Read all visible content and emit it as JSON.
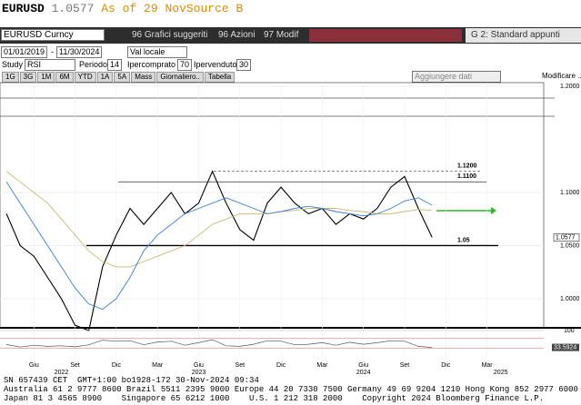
{
  "header": {
    "ticker": "EURUSD",
    "price": "1.0577",
    "asof": "As of 29 Nov",
    "source": "Source B"
  },
  "toolbar": {
    "security": "EURUSD Curncy",
    "buttons": [
      "96 Grafici suggeriti",
      "96 Azioni",
      "97 Modif"
    ],
    "right": "G 2: Standard appunti"
  },
  "controls": {
    "start": "01/01/2019",
    "separator": "-",
    "end": "11/30/2024",
    "currency": "Val locale",
    "study_label": "Study",
    "study": "RSI",
    "period_label": "Periodo",
    "period": "14",
    "overbought_label": "Ipercomprato",
    "overbought": "70",
    "oversold_label": "Ipervenduto",
    "oversold": "30"
  },
  "tabs": [
    "1G",
    "3G",
    "1M",
    "6M",
    "YTD",
    "1A",
    "5A",
    "Mass",
    "Giornaliero..",
    "Tabella"
  ],
  "add_data": "Aggiungere dati",
  "modify": "Modificare ...",
  "chart_data": [
    {
      "type": "line",
      "x": [
        "2022-04",
        "2022-05",
        "2022-06",
        "2022-07",
        "2022-08",
        "2022-09",
        "2022-10",
        "2022-11",
        "2022-12",
        "2023-01",
        "2023-02",
        "2023-03",
        "2023-04",
        "2023-05",
        "2023-06",
        "2023-07",
        "2023-08",
        "2023-09",
        "2023-10",
        "2023-11",
        "2023-12",
        "2024-01",
        "2024-02",
        "2024-03",
        "2024-04",
        "2024-05",
        "2024-06",
        "2024-07",
        "2024-08",
        "2024-09",
        "2024-10",
        "2024-11"
      ],
      "series": [
        {
          "color": "#000000",
          "values": [
            1.08,
            1.05,
            1.04,
            1.02,
            1.0,
            0.975,
            0.97,
            1.03,
            1.06,
            1.085,
            1.07,
            1.085,
            1.1,
            1.08,
            1.09,
            1.12,
            1.09,
            1.065,
            1.055,
            1.09,
            1.105,
            1.09,
            1.08,
            1.085,
            1.07,
            1.08,
            1.075,
            1.085,
            1.105,
            1.115,
            1.085,
            1.0577
          ]
        },
        {
          "color": "#c8b878",
          "values": [
            1.12,
            1.11,
            1.1,
            1.09,
            1.075,
            1.06,
            1.045,
            1.035,
            1.03,
            1.03,
            1.035,
            1.04,
            1.045,
            1.05,
            1.06,
            1.07,
            1.075,
            1.08,
            1.08,
            1.08,
            1.082,
            1.083,
            1.085,
            1.085,
            1.085,
            1.083,
            1.082,
            1.08,
            1.08,
            1.082,
            1.084,
            1.083
          ]
        },
        {
          "color": "#3f7fd0",
          "values": [
            1.11,
            1.09,
            1.07,
            1.05,
            1.03,
            1.01,
            0.995,
            0.99,
            1.0,
            1.02,
            1.045,
            1.06,
            1.07,
            1.08,
            1.085,
            1.09,
            1.095,
            1.09,
            1.085,
            1.08,
            1.082,
            1.085,
            1.087,
            1.085,
            1.082,
            1.08,
            1.078,
            1.08,
            1.085,
            1.092,
            1.095,
            1.088
          ]
        }
      ],
      "xlim": [
        "2022-03",
        "2025-07"
      ],
      "xticks": [
        {
          "value": "2022-06",
          "label": "Giu"
        },
        {
          "value": "2022-09",
          "label": "Set"
        },
        {
          "value": "2022-12",
          "label": "Dic"
        },
        {
          "value": "2023-03",
          "label": "Mar"
        },
        {
          "value": "2023-06",
          "label": "Giu"
        },
        {
          "value": "2023-09",
          "label": "Set"
        },
        {
          "value": "2023-12",
          "label": "Dic"
        },
        {
          "value": "2024-03",
          "label": "Mar"
        },
        {
          "value": "2024-06",
          "label": "Giu"
        },
        {
          "value": "2024-09",
          "label": "Set"
        },
        {
          "value": "2024-12",
          "label": "Dic"
        },
        {
          "value": "2025-03",
          "label": "Mar"
        }
      ],
      "year_ticks": [
        {
          "value": "2022-08",
          "label": "2022"
        },
        {
          "value": "2023-06",
          "label": "2023"
        },
        {
          "value": "2024-06",
          "label": "2024"
        },
        {
          "value": "2025-04",
          "label": "2025"
        }
      ],
      "ylim": [
        0.9726,
        1.2034
      ],
      "yticks": [
        {
          "value": 1.2,
          "label": "1.2000"
        },
        {
          "value": 1.1,
          "label": "1.1000"
        },
        {
          "value": 1.05,
          "label": "1.0500"
        },
        {
          "value": 1.0,
          "label": "1.0000"
        }
      ],
      "annotations": [
        {
          "value": 1.12,
          "label": "1.1200"
        },
        {
          "value": 1.11,
          "label": "1.1100"
        },
        {
          "value": 1.05,
          "label": "1.05"
        }
      ]
    },
    {
      "type": "line",
      "x": [
        "2022-04",
        "2022-05",
        "2022-06",
        "2022-07",
        "2022-08",
        "2022-09",
        "2022-10",
        "2022-11",
        "2022-12",
        "2023-01",
        "2023-02",
        "2023-03",
        "2023-04",
        "2023-05",
        "2023-06",
        "2023-07",
        "2023-08",
        "2023-09",
        "2023-10",
        "2023-11",
        "2023-12",
        "2024-01",
        "2024-02",
        "2024-03",
        "2024-04",
        "2024-05",
        "2024-06",
        "2024-07",
        "2024-08",
        "2024-09",
        "2024-10",
        "2024-11"
      ],
      "series": [
        {
          "color": "#555555",
          "values": [
            45,
            35,
            42,
            38,
            40,
            36,
            44,
            62,
            58,
            60,
            44,
            55,
            58,
            42,
            52,
            64,
            40,
            38,
            46,
            60,
            58,
            44,
            46,
            52,
            42,
            54,
            46,
            52,
            60,
            58,
            38,
            33.5924
          ]
        }
      ],
      "ylim": [
        0,
        100
      ],
      "yticks": [
        100
      ],
      "last_label": "33.5924"
    }
  ],
  "footer": [
    "SN 657439 CET  GMT+1:00 bo1928-172 30-Nov-2024 09:34",
    "Australia 61 2 9777 8600 Brazil 5511 2395 9000 Europe 44 20 7330 7500 Germany 49 69 9204 1210 Hong Kong 852 2977 6000",
    "Japan 81 3 4565 8900    Singapore 65 6212 1000    U.S. 1 212 318 2000    Copyright 2024 Bloomberg Finance L.P."
  ]
}
